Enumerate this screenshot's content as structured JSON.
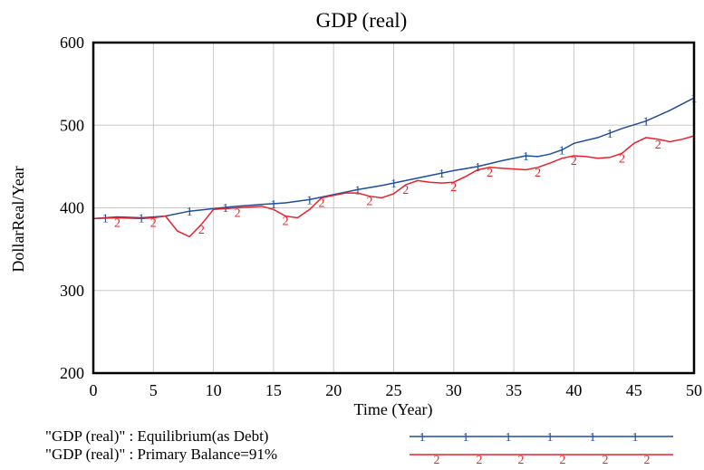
{
  "chart_data": {
    "type": "line",
    "title": "GDP (real)",
    "xlabel": "Time (Year)",
    "ylabel": "DollarReal/Year",
    "xlim": [
      0,
      50
    ],
    "ylim": [
      200,
      600
    ],
    "xticks": [
      0,
      5,
      10,
      15,
      20,
      25,
      30,
      35,
      40,
      45,
      50
    ],
    "yticks": [
      200,
      300,
      400,
      500,
      600
    ],
    "grid": true,
    "legend_position": "bottom",
    "series": [
      {
        "name": "\"GDP (real)\" : Equilibrium(as Debt)",
        "marker": "1",
        "color": "#1f4e9c",
        "x": [
          0,
          2,
          4,
          6,
          8,
          10,
          12,
          14,
          16,
          18,
          20,
          22,
          24,
          26,
          28,
          30,
          32,
          34,
          36,
          37,
          38,
          39,
          40,
          42,
          44,
          46,
          48,
          50
        ],
        "y": [
          387,
          389,
          388,
          390,
          396,
          399,
          402,
          404,
          406,
          410,
          416,
          422,
          427,
          433,
          439,
          445,
          450,
          457,
          463,
          462,
          465,
          470,
          478,
          485,
          496,
          505,
          518,
          533
        ]
      },
      {
        "name": "\"GDP (real)\" : Primary Balance=91%",
        "marker": "2",
        "color": "#e8212b",
        "x": [
          0,
          2,
          4,
          5,
          6,
          7,
          8,
          9,
          10,
          12,
          14,
          15,
          16,
          17,
          18,
          19,
          20,
          21,
          22,
          23,
          24,
          25,
          26,
          27,
          28,
          29,
          30,
          31,
          32,
          33,
          34,
          35,
          36,
          37,
          38,
          39,
          40,
          41,
          42,
          43,
          44,
          45,
          46,
          47,
          48,
          49,
          50
        ],
        "y": [
          387,
          388,
          387,
          388,
          390,
          372,
          365,
          380,
          398,
          400,
          402,
          398,
          390,
          388,
          398,
          412,
          415,
          418,
          418,
          414,
          412,
          417,
          428,
          433,
          431,
          430,
          431,
          438,
          446,
          449,
          448,
          447,
          446,
          449,
          454,
          460,
          463,
          462,
          460,
          461,
          466,
          478,
          485,
          483,
          480,
          483,
          487
        ]
      }
    ]
  }
}
